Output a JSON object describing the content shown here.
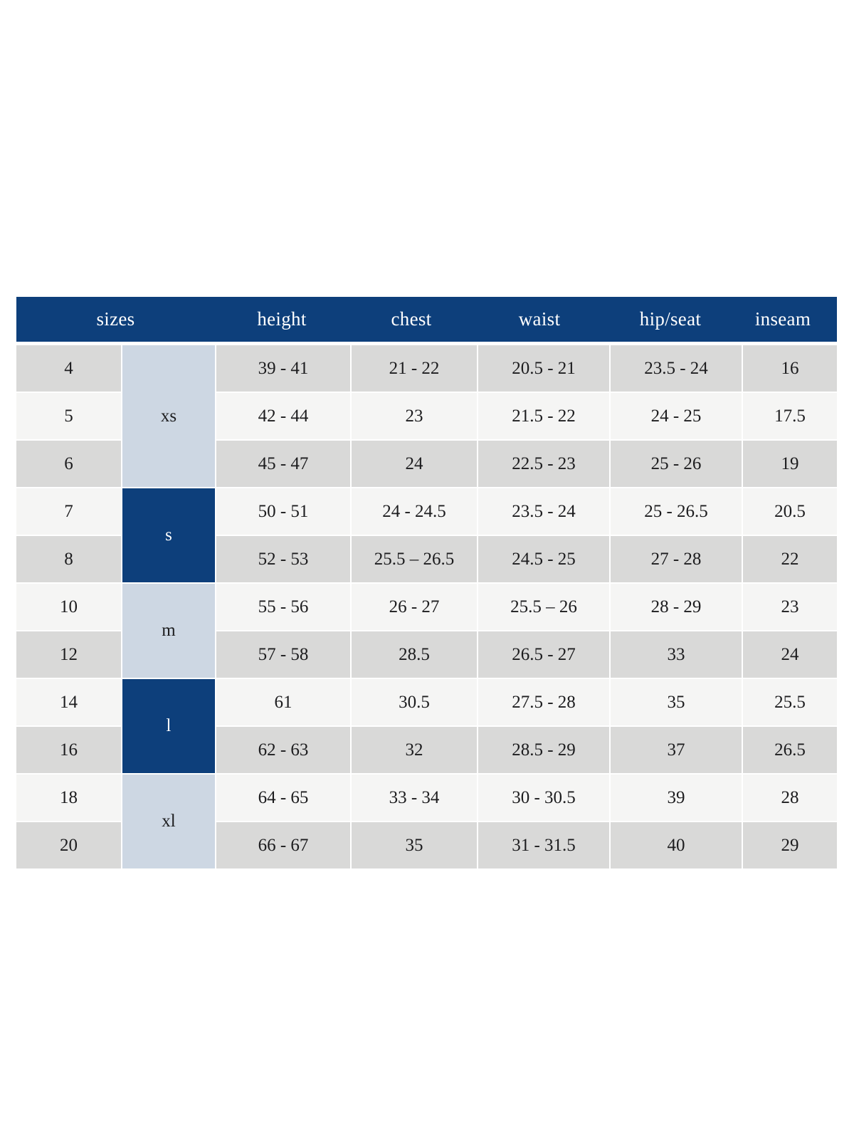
{
  "colors": {
    "header_bg": "#0d3f7b",
    "group_dark_bg": "#0d3f7b",
    "group_light_bg": "#cdd7e3",
    "row_gray_bg": "#d9d9d8",
    "row_light_bg": "#f5f5f4",
    "header_text": "#ffffff",
    "cell_text": "#1c1c1e",
    "page_bg": "#ffffff"
  },
  "table": {
    "header": {
      "sizes": "sizes",
      "height": "height",
      "chest": "chest",
      "waist": "waist",
      "hip_seat": "hip/seat",
      "inseam": "inseam"
    },
    "groups": [
      {
        "label": "xs",
        "span": 3,
        "style": "light"
      },
      {
        "label": "s",
        "span": 2,
        "style": "dark"
      },
      {
        "label": "m",
        "span": 2,
        "style": "light"
      },
      {
        "label": "l",
        "span": 2,
        "style": "dark"
      },
      {
        "label": "xl",
        "span": 2,
        "style": "light"
      }
    ],
    "rows": [
      {
        "size": "4",
        "height": "39 - 41",
        "chest": "21 - 22",
        "waist": "20.5 - 21",
        "hip_seat": "23.5 - 24",
        "inseam": "16"
      },
      {
        "size": "5",
        "height": "42 - 44",
        "chest": "23",
        "waist": "21.5 - 22",
        "hip_seat": "24 - 25",
        "inseam": "17.5"
      },
      {
        "size": "6",
        "height": "45 - 47",
        "chest": "24",
        "waist": "22.5 - 23",
        "hip_seat": "25 - 26",
        "inseam": "19"
      },
      {
        "size": "7",
        "height": "50 - 51",
        "chest": "24 - 24.5",
        "waist": "23.5 - 24",
        "hip_seat": "25 - 26.5",
        "inseam": "20.5"
      },
      {
        "size": "8",
        "height": "52 - 53",
        "chest": "25.5 – 26.5",
        "waist": "24.5 - 25",
        "hip_seat": "27 - 28",
        "inseam": "22"
      },
      {
        "size": "10",
        "height": "55 - 56",
        "chest": "26 - 27",
        "waist": "25.5 – 26",
        "hip_seat": "28 - 29",
        "inseam": "23"
      },
      {
        "size": "12",
        "height": "57 - 58",
        "chest": "28.5",
        "waist": "26.5 - 27",
        "hip_seat": "33",
        "inseam": "24"
      },
      {
        "size": "14",
        "height": "61",
        "chest": "30.5",
        "waist": "27.5 - 28",
        "hip_seat": "35",
        "inseam": "25.5"
      },
      {
        "size": "16",
        "height": "62 - 63",
        "chest": "32",
        "waist": "28.5 - 29",
        "hip_seat": "37",
        "inseam": "26.5"
      },
      {
        "size": "18",
        "height": "64 - 65",
        "chest": "33 - 34",
        "waist": "30 - 30.5",
        "hip_seat": "39",
        "inseam": "28"
      },
      {
        "size": "20",
        "height": "66 - 67",
        "chest": "35",
        "waist": "31 - 31.5",
        "hip_seat": "40",
        "inseam": "29"
      }
    ]
  }
}
